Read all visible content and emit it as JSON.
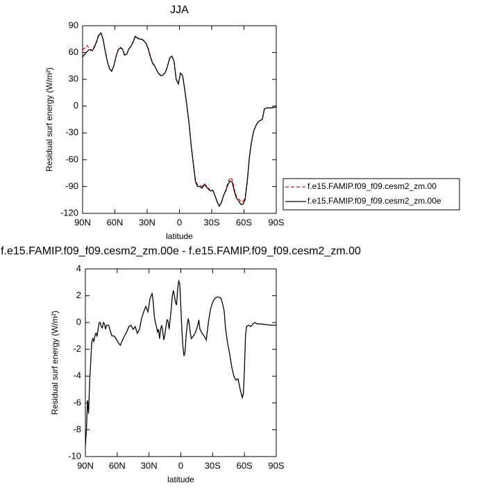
{
  "chart_data": [
    {
      "type": "line",
      "title": "JJA",
      "x_label": "latitude",
      "y_label": "Residual surf energy (W/m²)",
      "x": [
        90,
        88,
        86,
        84,
        83,
        81,
        79,
        77,
        75,
        73,
        71,
        69,
        67,
        65,
        63,
        61,
        59,
        57,
        55,
        53,
        51,
        49,
        47,
        45,
        43,
        41,
        39,
        37,
        35,
        33,
        31,
        29,
        27,
        25,
        23,
        21,
        19,
        17,
        15,
        13,
        11,
        9,
        7,
        5,
        3,
        1,
        -1,
        -3,
        -5,
        -7,
        -9,
        -11,
        -13,
        -15,
        -17,
        -19,
        -21,
        -23,
        -25,
        -27,
        -29,
        -31,
        -33,
        -35,
        -37,
        -39,
        -41,
        -43,
        -45,
        -47,
        -49,
        -51,
        -53,
        -55,
        -57,
        -59,
        -61,
        -63,
        -65,
        -67,
        -69,
        -71,
        -73,
        -75,
        -77,
        -79,
        -81,
        -85,
        -90
      ],
      "series": [
        {
          "name": "f.e15.FAMIP.f09_f09.cesm2_zm.00",
          "color": "#ff0000",
          "style": "dashed",
          "values": [
            63,
            65,
            68,
            65,
            64,
            62,
            67,
            73,
            80,
            82,
            75,
            62,
            50,
            42,
            39,
            45,
            55,
            63,
            66,
            64,
            58,
            58,
            64,
            67,
            72,
            79,
            76,
            76,
            75,
            73,
            70,
            65,
            56,
            49,
            45,
            40,
            36,
            34,
            35,
            38,
            45,
            54,
            56,
            50,
            30,
            25,
            37,
            34,
            18,
            0,
            -20,
            -45,
            -65,
            -84,
            -88,
            -89,
            -90,
            -87,
            -89,
            -92,
            -95,
            -94,
            -100,
            -106,
            -112,
            -108,
            -100,
            -94,
            -86,
            -80,
            -82,
            -93,
            -101,
            -104,
            -106,
            -107,
            -103,
            -84,
            -57,
            -40,
            -28,
            -22,
            -18,
            -16,
            -15,
            -3,
            -2,
            -2,
            -1
          ]
        },
        {
          "name": "f.e15.FAMIP.f09_f09.cesm2_zm.00e",
          "color": "#000000",
          "style": "solid",
          "values": [
            55,
            58,
            61,
            63,
            63,
            62,
            66,
            72,
            79,
            82,
            75,
            62,
            50,
            42,
            39,
            45,
            55,
            63,
            65,
            64,
            57,
            58,
            64,
            67,
            72,
            78,
            76,
            75,
            75,
            73,
            70,
            64,
            55,
            48,
            45,
            40,
            36,
            34,
            35,
            38,
            45,
            54,
            56,
            50,
            30,
            25,
            37,
            34,
            18,
            0,
            -20,
            -45,
            -65,
            -85,
            -90,
            -90,
            -92,
            -88,
            -90,
            -93,
            -95,
            -94,
            -100,
            -107,
            -112,
            -108,
            -100,
            -95,
            -88,
            -84,
            -85,
            -95,
            -103,
            -106,
            -110,
            -110,
            -105,
            -85,
            -58,
            -40,
            -28,
            -22,
            -18,
            -16,
            -15,
            -3,
            -2,
            -2,
            -1
          ]
        }
      ],
      "xlim": [
        90,
        -90
      ],
      "xticks": [
        {
          "value": 90,
          "label": "90N"
        },
        {
          "value": 60,
          "label": "60N"
        },
        {
          "value": 30,
          "label": "30N"
        },
        0,
        {
          "value": -30,
          "label": "30S"
        },
        {
          "value": -60,
          "label": "60S"
        },
        {
          "value": -90,
          "label": "90S"
        }
      ],
      "ylim": [
        -120,
        90
      ],
      "yticks": [
        -120,
        -90,
        -60,
        -30,
        0,
        30,
        60,
        90
      ],
      "legend": "right"
    },
    {
      "type": "line",
      "title": "f.e15.FAMIP.f09_f09.cesm2_zm.00e - f.e15.FAMIP.f09_f09.cesm2_zm.00",
      "x_label": "latitude",
      "y_label": "Residual surf energy (W/m²)",
      "x": [
        90,
        89,
        88,
        87,
        86,
        85,
        84,
        83,
        82,
        81,
        80,
        79,
        78,
        77,
        76,
        75,
        74,
        73,
        72,
        71,
        70,
        68,
        67,
        65,
        63,
        61,
        59,
        57,
        55,
        53,
        51,
        49,
        47,
        45,
        43,
        41,
        39,
        37,
        35,
        33,
        31,
        29,
        27,
        26,
        25,
        24,
        23,
        22,
        21,
        20,
        19,
        18,
        17,
        16,
        15,
        14,
        13,
        12,
        11,
        10,
        9,
        8,
        7,
        6,
        5,
        4,
        3,
        2,
        1,
        0,
        -1,
        -2,
        -3,
        -4,
        -5,
        -6,
        -7,
        -8,
        -9,
        -10,
        -12,
        -14,
        -16,
        -17,
        -18,
        -20,
        -22,
        -24,
        -26,
        -28,
        -30,
        -32,
        -34,
        -36,
        -38,
        -40,
        -41,
        -42,
        -44,
        -46,
        -48,
        -50,
        -52,
        -54,
        -56,
        -58,
        -59,
        -60,
        -61,
        -62,
        -64,
        -66,
        -68,
        -70,
        -72,
        -75,
        -80,
        -85,
        -90
      ],
      "series": [
        {
          "name": null,
          "color": "#000000",
          "style": "solid",
          "values": [
            -9.2,
            -8,
            -5.8,
            -6.8,
            -4.5,
            -3,
            -1.5,
            -1.2,
            -1.4,
            -1,
            -0.8,
            -1,
            -0.5,
            0,
            0,
            -0.3,
            -0.4,
            0,
            -0.1,
            -0.5,
            -0.2,
            -0.2,
            -0.5,
            -1,
            -1,
            -1.2,
            -1.5,
            -1.7,
            -1.3,
            -1,
            -0.7,
            -0.3,
            -0.2,
            -0.5,
            -0.3,
            -0.8,
            -0.5,
            0.3,
            0.8,
            1.2,
            0.8,
            1.8,
            2.2,
            1.5,
            0.5,
            0,
            -0.3,
            -0.7,
            -0.5,
            -1.2,
            -0.5,
            -0.2,
            -0.7,
            -1.3,
            -0.9,
            -0.3,
            0.2,
            0.1,
            -0.5,
            0.3,
            1,
            2,
            2.4,
            2,
            1.5,
            1.3,
            2.5,
            3.1,
            2.9,
            1.2,
            -0.5,
            -1.8,
            -2.5,
            -2.2,
            -1,
            -0.2,
            0.3,
            -0.1,
            -0.8,
            -1.2,
            -1,
            -0.7,
            -0.2,
            0.2,
            -0.5,
            -0.8,
            -1,
            -1.3,
            0,
            1,
            1.5,
            1.8,
            1.9,
            1.9,
            1.8,
            1.2,
            0.8,
            -0.3,
            -1.5,
            -2.3,
            -3.3,
            -4,
            -4.3,
            -4.2,
            -5,
            -5.6,
            -5.3,
            -3.5,
            -1,
            -0.3,
            -0.2,
            -0.3,
            -0.1,
            0,
            -0.1,
            -0.1,
            -0.15,
            -0.2,
            -0.2
          ]
        }
      ],
      "xlim": [
        90,
        -90
      ],
      "xticks": [
        {
          "value": 90,
          "label": "90N"
        },
        {
          "value": 60,
          "label": "60N"
        },
        {
          "value": 30,
          "label": "30N"
        },
        0,
        {
          "value": -30,
          "label": "30S"
        },
        {
          "value": -60,
          "label": "60S"
        },
        {
          "value": -90,
          "label": "90S"
        }
      ],
      "ylim": [
        -10,
        4
      ],
      "yticks": [
        -10,
        -8,
        -6,
        -4,
        -2,
        0,
        2,
        4
      ]
    }
  ]
}
